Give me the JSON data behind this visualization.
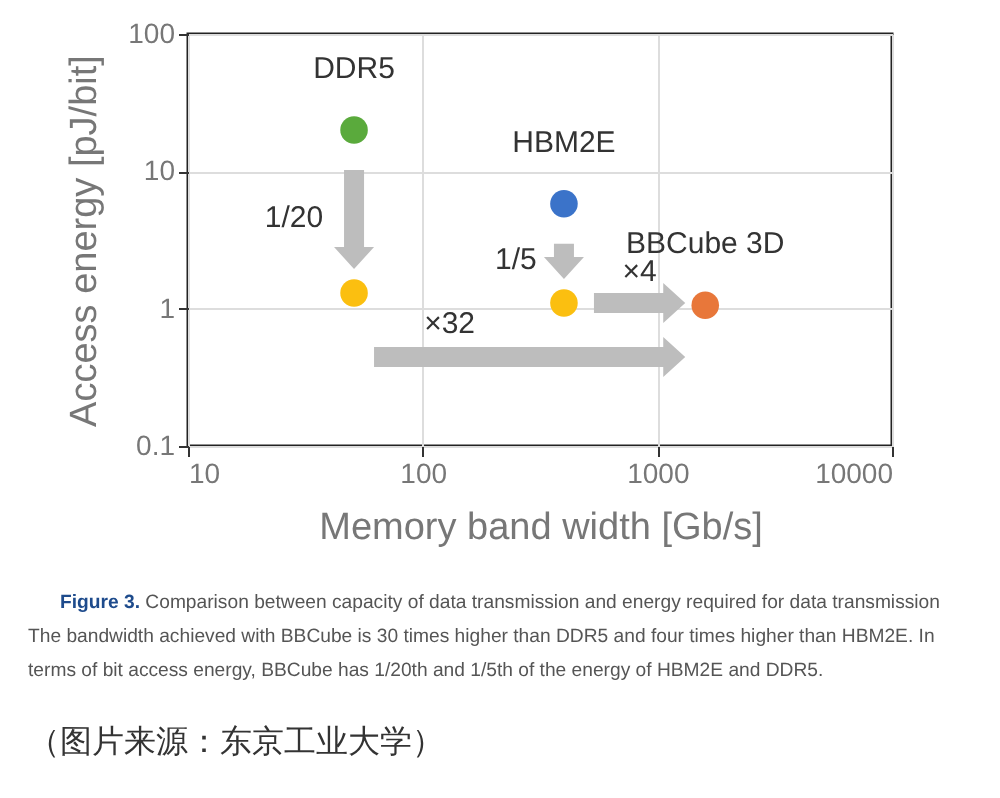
{
  "chart_data": {
    "type": "scatter",
    "xlabel": "Memory band width [Gb/s]",
    "ylabel": "Access energy [pJ/bit]",
    "log": "xy",
    "grid": true,
    "marker": "circle",
    "xlim": [
      10,
      10000
    ],
    "xticks": [
      10,
      100,
      1000,
      10000
    ],
    "ylim": [
      0.1,
      100
    ],
    "yticks": [
      0.1,
      1,
      10,
      100
    ],
    "series": [
      {
        "name": "DDR5",
        "color": "#5aaa3c",
        "x": [
          51
        ],
        "values": [
          20
        ]
      },
      {
        "color": "#fbbf10",
        "x": [
          51
        ],
        "values": [
          1.3
        ]
      },
      {
        "name": "HBM2E",
        "color": "#3b73c9",
        "x": [
          400
        ],
        "values": [
          5.8
        ]
      },
      {
        "color": "#fbbf10",
        "x": [
          400
        ],
        "values": [
          1.1
        ]
      },
      {
        "name": "BBCube 3D",
        "color": "#e8773a",
        "x": [
          1600
        ],
        "values": [
          1.06
        ]
      }
    ],
    "annotations": [
      "1/20",
      "1/5",
      "×4",
      "×32",
      "Figure 3. Comparison between capacity of data transmission and energy required for data transmission",
      "The bandwidth achieved with BBCube is 30 times higher than DDR5 and four times higher than HBM2E. In terms of bit access energy, BBCube has 1/20th and 1/5th of the energy of HBM2E and DDR5.",
      "（图片来源：东京工业大学）"
    ]
  }
}
